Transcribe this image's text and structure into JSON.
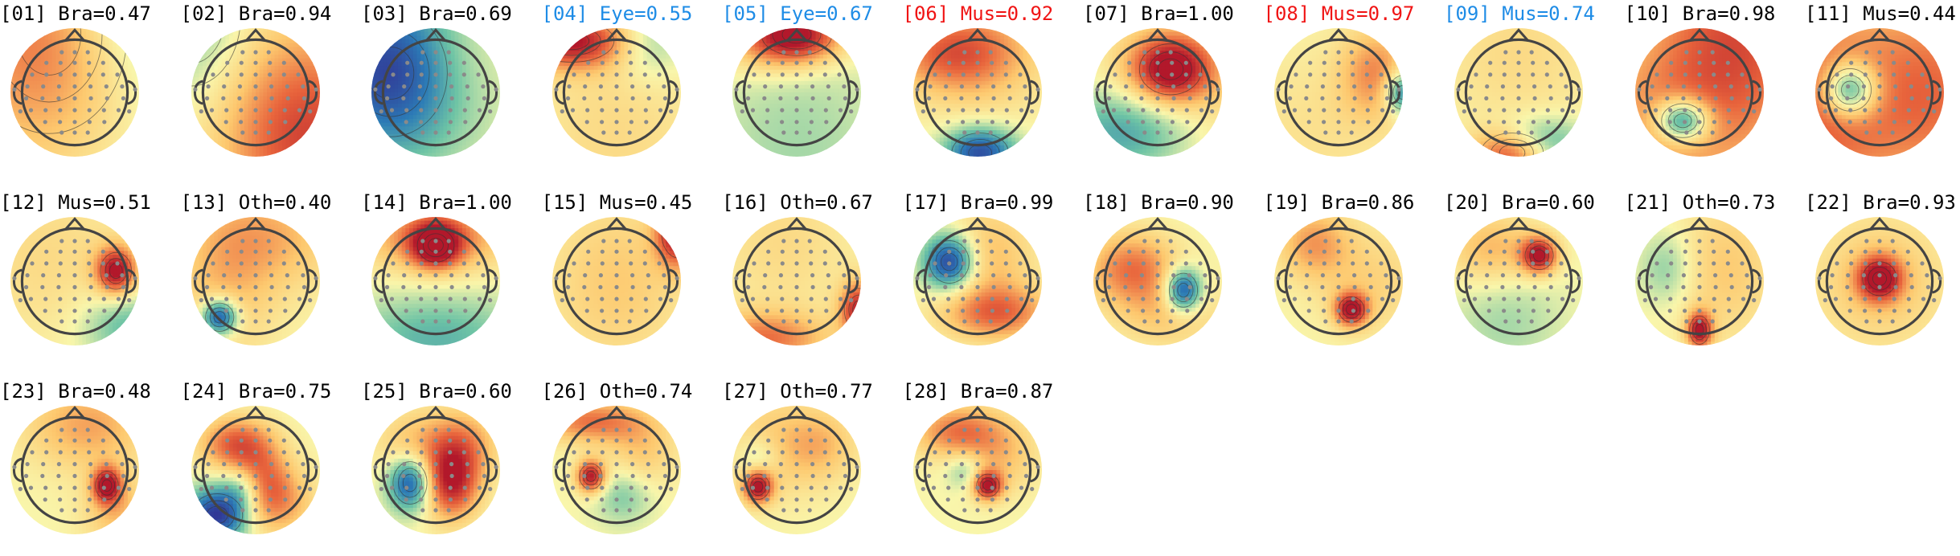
{
  "components": [
    {
      "index": "01",
      "label": "Bra",
      "score": "0.47",
      "label_color": "#000000",
      "map": [
        [
          0.7,
          0.3,
          0.05,
          0.55,
          0.7
        ],
        [
          0.02,
          0.8,
          -0.9,
          0.45,
          -0.9
        ],
        [
          -0.8,
          0.95,
          -0.95,
          0.5,
          -0.95
        ]
      ]
    },
    {
      "index": "02",
      "label": "Bra",
      "score": "0.94",
      "label_color": "#000000",
      "map": [
        [
          -0.35,
          0.0,
          -0.1,
          0.35,
          0.5
        ],
        [
          0.8,
          0.9,
          0.85,
          0.5,
          0.6
        ],
        [
          0.05,
          0.5,
          -0.1,
          0.45,
          0.4
        ]
      ]
    },
    {
      "index": "03",
      "label": "Bra",
      "score": "0.69",
      "label_color": "#000000",
      "map": [
        [
          -0.85,
          0.15,
          0.35,
          0.4,
          0.45
        ],
        [
          0.35,
          0.6,
          0.15,
          0.35,
          0.4
        ],
        [
          -0.3,
          0.5,
          0.05,
          0.5,
          0.6
        ]
      ]
    },
    {
      "index": "04",
      "label": "Eye",
      "score": "0.55",
      "label_color": "#1e8ce6",
      "map": [
        [
          0.95,
          0.15,
          0.1,
          0.3,
          0.15
        ],
        [
          -0.3,
          0.75,
          0.12,
          0.2,
          0.2
        ],
        [
          0.2,
          0.5,
          0.8,
          0.5,
          0.6
        ]
      ]
    },
    {
      "index": "05",
      "label": "Eye",
      "score": "0.67",
      "label_color": "#1e8ce6",
      "map": [
        [
          0.9,
          0.5,
          0.05,
          0.25,
          0.15
        ],
        [
          0.4,
          0.3,
          0.1,
          0.3,
          0.18
        ],
        [
          -0.2,
          0.5,
          0.9,
          0.5,
          0.6
        ]
      ]
    },
    {
      "index": "06",
      "label": "Mus",
      "score": "0.92",
      "label_color": "#f01414",
      "map": [
        [
          -0.9,
          0.52,
          0.97,
          0.2,
          0.14
        ],
        [
          0.5,
          0.3,
          0.2,
          0.35,
          0.2
        ],
        [
          0.3,
          0.5,
          0.15,
          0.4,
          0.4
        ]
      ]
    },
    {
      "index": "07",
      "label": "Bra",
      "score": "1.00",
      "label_color": "#000000",
      "map": [
        [
          1.0,
          0.6,
          0.32,
          0.22,
          0.18
        ],
        [
          -0.6,
          0.3,
          0.8,
          0.4,
          0.25
        ],
        [
          0.3,
          0.7,
          0.5,
          0.45,
          0.5
        ]
      ]
    },
    {
      "index": "08",
      "label": "Mus",
      "score": "0.97",
      "label_color": "#f01414",
      "map": [
        [
          -0.8,
          1.0,
          0.5,
          0.1,
          0.12
        ],
        [
          0.5,
          0.8,
          0.35,
          0.2,
          0.25
        ],
        [
          0.15,
          0.3,
          0.8,
          0.5,
          0.5
        ]
      ]
    },
    {
      "index": "09",
      "label": "Mus",
      "score": "0.74",
      "label_color": "#1e8ce6",
      "map": [
        [
          1.0,
          0.45,
          0.97,
          0.22,
          0.14
        ],
        [
          -0.7,
          0.62,
          0.9,
          0.25,
          0.14
        ],
        [
          0.2,
          0.5,
          0.2,
          0.45,
          0.45
        ]
      ]
    },
    {
      "index": "10",
      "label": "Bra",
      "score": "0.98",
      "label_color": "#000000",
      "map": [
        [
          -1.0,
          0.37,
          0.72,
          0.15,
          0.12
        ],
        [
          0.7,
          0.8,
          0.05,
          0.5,
          0.6
        ],
        [
          0.4,
          0.15,
          0.8,
          0.6,
          0.5
        ]
      ]
    },
    {
      "index": "11",
      "label": "Mus",
      "score": "0.44",
      "label_color": "#000000",
      "map": [
        [
          -1.0,
          0.27,
          0.48,
          0.15,
          0.15
        ],
        [
          0.7,
          0.05,
          0.6,
          0.4,
          0.6
        ],
        [
          0.6,
          0.95,
          0.5,
          0.4,
          0.6
        ]
      ]
    },
    {
      "index": "12",
      "label": "Mus",
      "score": "0.51",
      "label_color": "#000000",
      "map": [
        [
          1.0,
          0.82,
          0.42,
          0.11,
          0.13
        ],
        [
          -0.4,
          0.9,
          0.85,
          0.25,
          0.2
        ],
        [
          0.2,
          0.3,
          0.3,
          0.5,
          0.5
        ]
      ]
    },
    {
      "index": "13",
      "label": "Oth",
      "score": "0.40",
      "label_color": "#000000",
      "map": [
        [
          -1.0,
          0.22,
          0.78,
          0.1,
          0.1
        ],
        [
          0.35,
          0.65,
          0.15,
          0.4,
          0.3
        ],
        [
          0.3,
          0.25,
          0.5,
          0.3,
          0.5
        ]
      ]
    },
    {
      "index": "14",
      "label": "Bra",
      "score": "1.00",
      "label_color": "#000000",
      "map": [
        [
          1.0,
          0.5,
          0.22,
          0.13,
          0.12
        ],
        [
          0.6,
          0.5,
          0.15,
          0.4,
          0.2
        ],
        [
          -0.4,
          0.5,
          0.95,
          0.5,
          0.25
        ]
      ]
    },
    {
      "index": "15",
      "label": "Mus",
      "score": "0.45",
      "label_color": "#000000",
      "map": [
        [
          1.0,
          0.98,
          0.12,
          0.12,
          0.18
        ],
        [
          0.3,
          0.5,
          0.5,
          0.4,
          0.5
        ],
        [
          0.0,
          0.5,
          0.5,
          0.5,
          0.5
        ]
      ]
    },
    {
      "index": "16",
      "label": "Oth",
      "score": "0.67",
      "label_color": "#000000",
      "map": [
        [
          0.9,
          0.98,
          0.72,
          0.1,
          0.15
        ],
        [
          0.6,
          0.25,
          0.95,
          0.35,
          0.15
        ],
        [
          0.2,
          0.4,
          0.2,
          0.4,
          0.4
        ]
      ]
    },
    {
      "index": "17",
      "label": "Bra",
      "score": "0.99",
      "label_color": "#000000",
      "map": [
        [
          -1.0,
          0.28,
          0.35,
          0.14,
          0.15
        ],
        [
          0.6,
          0.65,
          0.75,
          0.3,
          0.15
        ],
        [
          0.35,
          0.6,
          0.3,
          0.25,
          0.3
        ]
      ]
    },
    {
      "index": "18",
      "label": "Bra",
      "score": "0.90",
      "label_color": "#000000",
      "map": [
        [
          -1.0,
          0.7,
          0.57,
          0.1,
          0.12
        ],
        [
          0.6,
          0.3,
          0.4,
          0.25,
          0.2
        ],
        [
          0.3,
          0.6,
          0.75,
          0.3,
          0.2
        ]
      ]
    },
    {
      "index": "19",
      "label": "Bra",
      "score": "0.86",
      "label_color": "#000000",
      "map": [
        [
          1.0,
          0.6,
          0.72,
          0.09,
          0.09
        ],
        [
          0.45,
          0.3,
          0.2,
          0.2,
          0.2
        ],
        [
          0.25,
          0.75,
          0.5,
          0.3,
          0.3
        ]
      ]
    },
    {
      "index": "20",
      "label": "Bra",
      "score": "0.60",
      "label_color": "#000000",
      "map": [
        [
          1.0,
          0.66,
          0.3,
          0.1,
          0.1
        ],
        [
          0.4,
          0.3,
          0.25,
          0.25,
          0.2
        ],
        [
          -0.2,
          0.4,
          0.8,
          0.3,
          0.3
        ]
      ]
    },
    {
      "index": "21",
      "label": "Oth",
      "score": "0.73",
      "label_color": "#000000",
      "map": [
        [
          1.0,
          0.5,
          0.88,
          0.07,
          0.1
        ],
        [
          -0.3,
          0.25,
          0.4,
          0.15,
          0.2
        ],
        [
          0.3,
          0.7,
          0.4,
          0.3,
          0.4
        ]
      ]
    },
    {
      "index": "22",
      "label": "Bra",
      "score": "0.93",
      "label_color": "#000000",
      "map": [
        [
          1.0,
          0.5,
          0.48,
          0.12,
          0.12
        ],
        [
          0.3,
          0.5,
          0.5,
          0.4,
          0.4
        ],
        [
          0.0,
          0.5,
          0.5,
          0.5,
          0.5
        ]
      ]
    },
    {
      "index": "23",
      "label": "Bra",
      "score": "0.48",
      "label_color": "#000000",
      "map": [
        [
          1.0,
          0.75,
          0.62,
          0.08,
          0.1
        ],
        [
          0.45,
          0.6,
          0.15,
          0.35,
          0.25
        ],
        [
          0.35,
          0.85,
          0.85,
          0.2,
          0.2
        ]
      ]
    },
    {
      "index": "24",
      "label": "Bra",
      "score": "0.75",
      "label_color": "#000000",
      "map": [
        [
          -1.0,
          0.2,
          0.85,
          0.18,
          0.15
        ],
        [
          0.7,
          0.35,
          0.3,
          0.2,
          0.15
        ],
        [
          0.5,
          0.55,
          0.6,
          0.15,
          0.2
        ],
        [
          -0.4,
          0.4,
          0.65,
          0.12,
          0.12
        ],
        [
          0.4,
          0.7,
          0.75,
          0.2,
          0.2
        ]
      ]
    },
    {
      "index": "25",
      "label": "Bra",
      "score": "0.60",
      "label_color": "#000000",
      "map": [
        [
          -0.9,
          0.3,
          0.6,
          0.12,
          0.15
        ],
        [
          0.9,
          0.62,
          0.6,
          0.15,
          0.2
        ],
        [
          0.5,
          0.7,
          0.3,
          0.2,
          0.2
        ],
        [
          0.3,
          0.3,
          0.3,
          0.2,
          0.2
        ]
      ]
    },
    {
      "index": "26",
      "label": "Oth",
      "score": "0.74",
      "label_color": "#000000",
      "map": [
        [
          1.0,
          0.3,
          0.55,
          0.08,
          0.09
        ],
        [
          0.6,
          0.3,
          0.12,
          0.3,
          0.12
        ],
        [
          -0.3,
          0.55,
          0.7,
          0.15,
          0.15
        ],
        [
          0.3,
          0.7,
          0.35,
          0.2,
          0.2
        ]
      ]
    },
    {
      "index": "27",
      "label": "Oth",
      "score": "0.77",
      "label_color": "#000000",
      "map": [
        [
          1.0,
          0.2,
          0.63,
          0.08,
          0.09
        ],
        [
          0.3,
          0.3,
          0.3,
          0.3,
          0.3
        ],
        [
          -0.3,
          0.2,
          0.4,
          0.12,
          0.12
        ],
        [
          0.3,
          0.7,
          0.3,
          0.2,
          0.2
        ]
      ]
    },
    {
      "index": "28",
      "label": "Bra",
      "score": "0.87",
      "label_color": "#000000",
      "map": [
        [
          1.0,
          0.58,
          0.62,
          0.08,
          0.08
        ],
        [
          0.6,
          0.35,
          0.2,
          0.25,
          0.15
        ],
        [
          -0.3,
          0.4,
          0.5,
          0.1,
          0.1
        ],
        [
          0.3,
          0.7,
          0.4,
          0.2,
          0.2
        ]
      ]
    }
  ]
}
